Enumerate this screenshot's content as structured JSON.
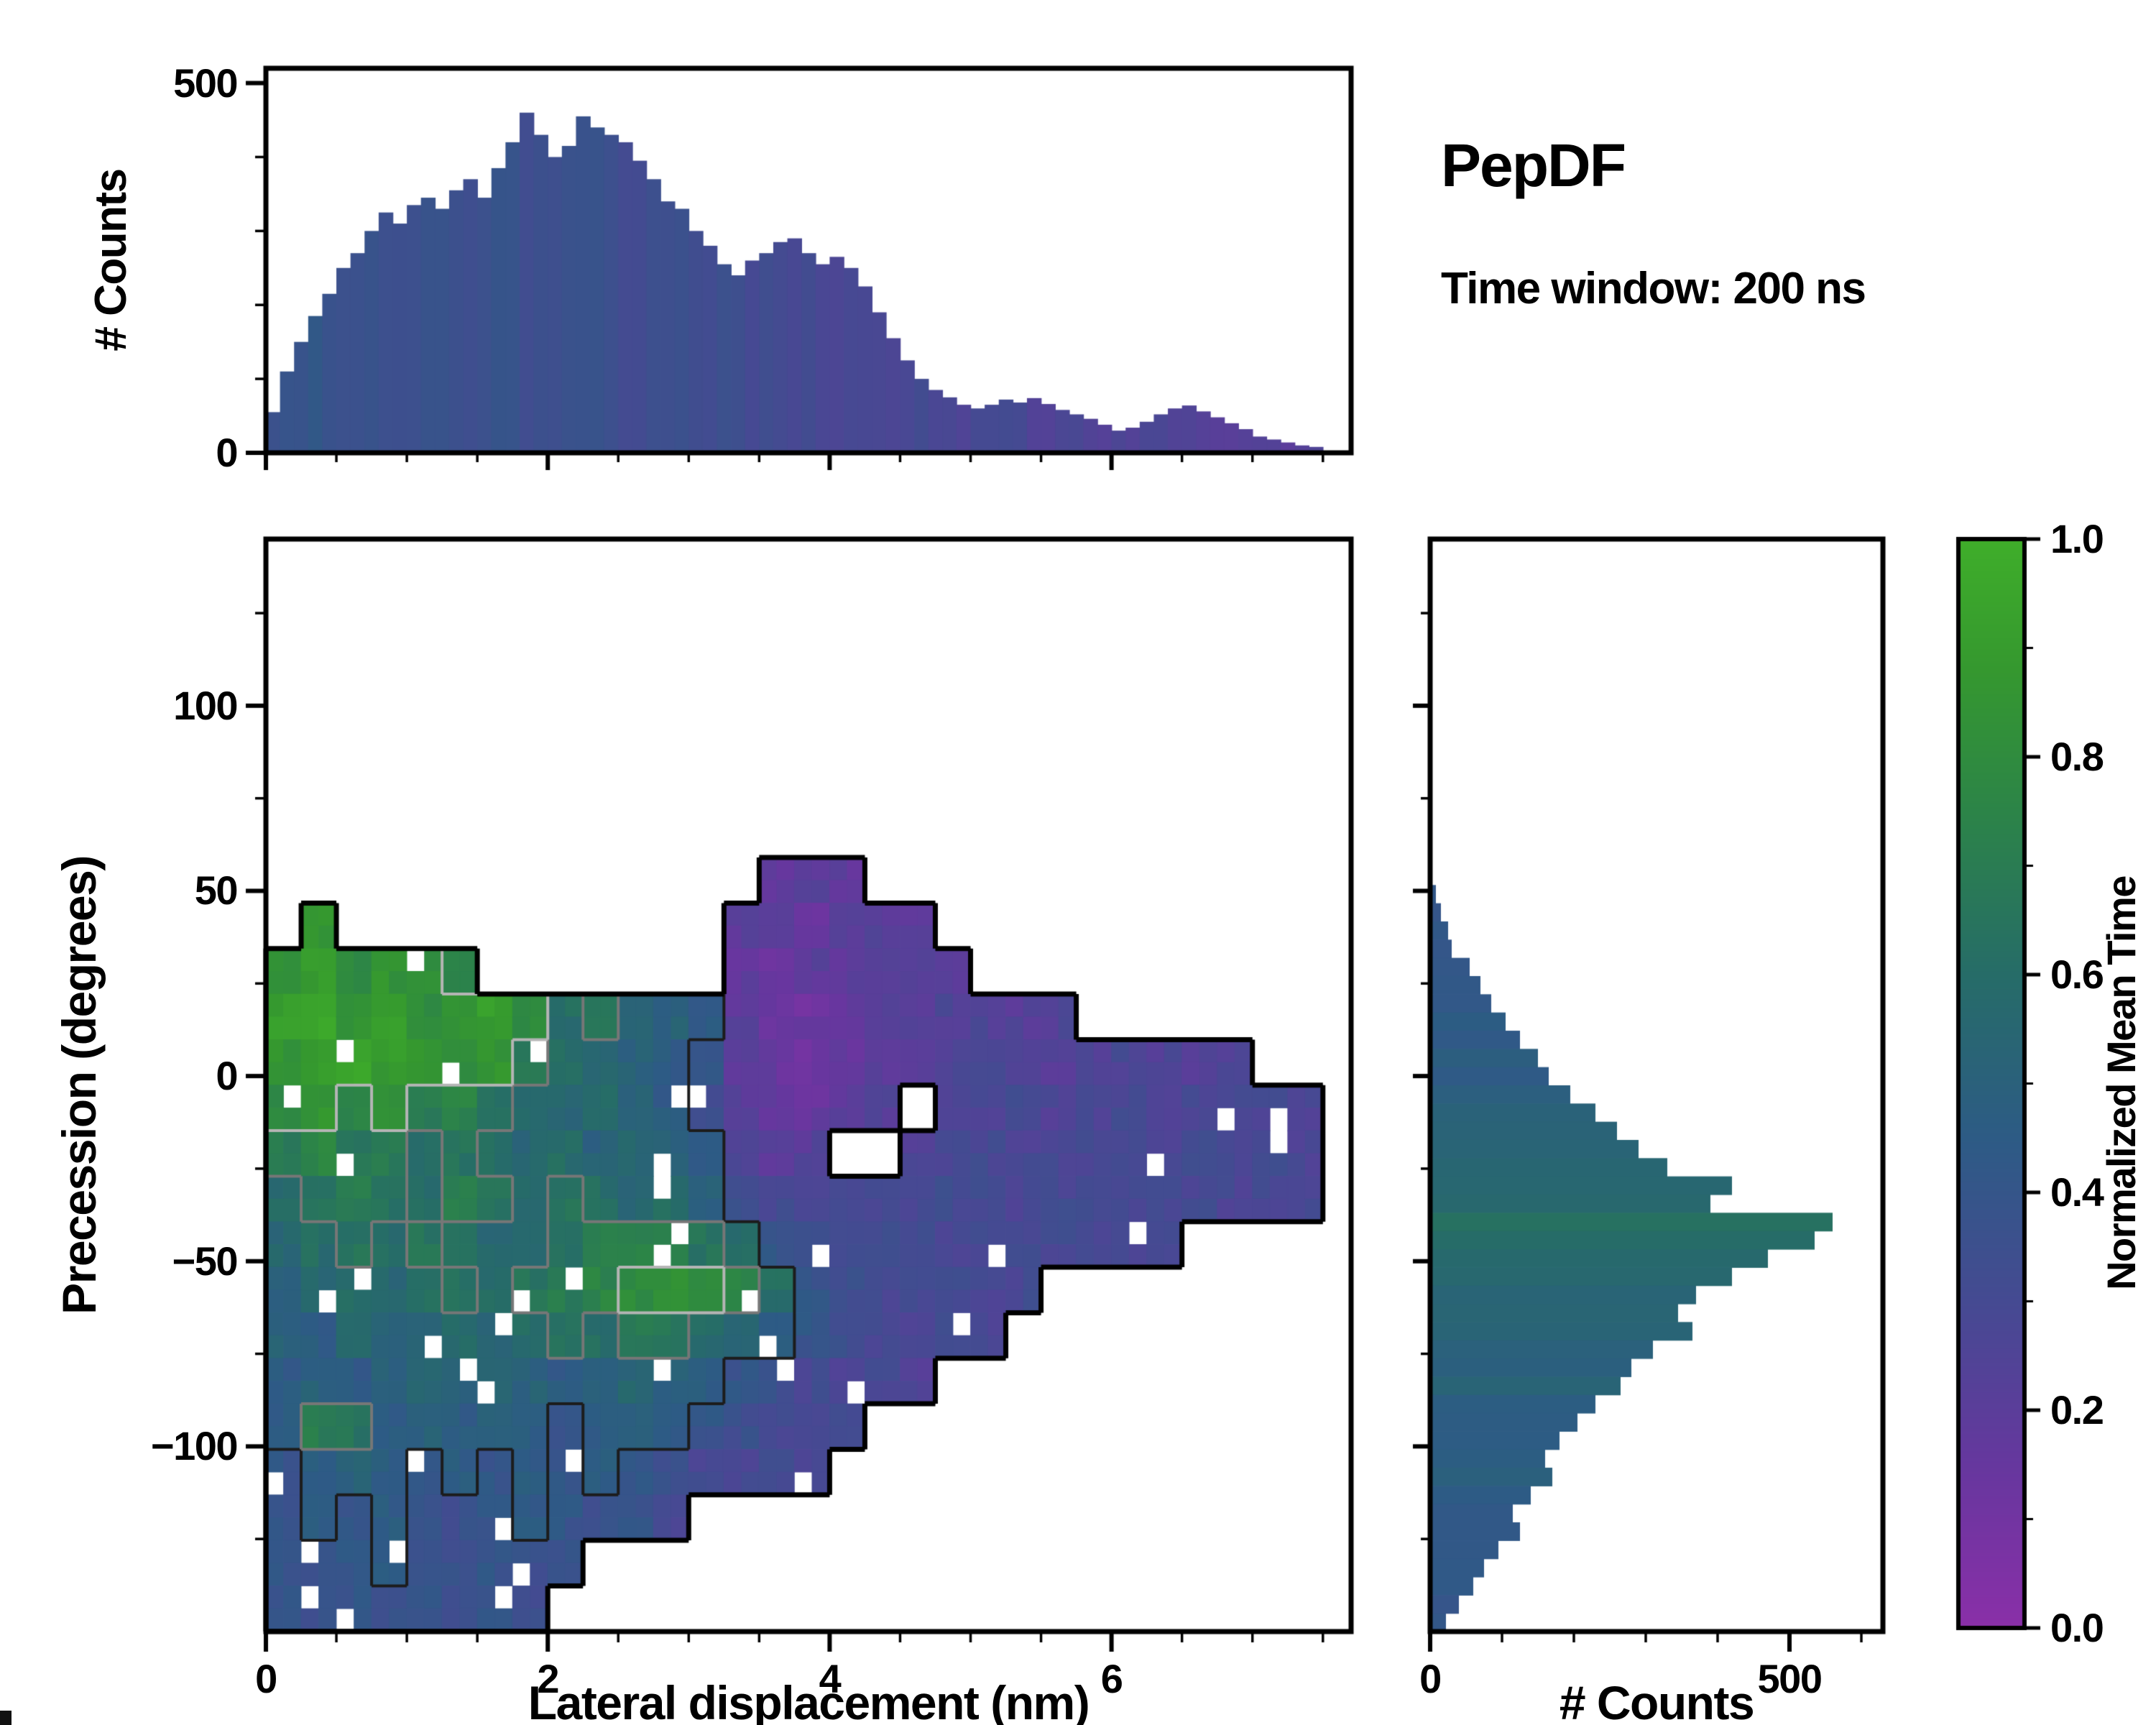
{
  "chart_data": {
    "type": "heatmap",
    "title": "PepDF",
    "annotation": "Time window: 200 ns",
    "xlabel": "Lateral displacement (nm)",
    "ylabel": "Precession (degrees)",
    "colorbar_label": "Normalized Mean Time",
    "x_range": [
      0,
      7.7
    ],
    "y_range": [
      -150,
      145
    ],
    "grid": "off",
    "colormap": [
      [
        0.0,
        "#8a2fa8"
      ],
      [
        0.15,
        "#66379e"
      ],
      [
        0.3,
        "#454a92"
      ],
      [
        0.45,
        "#2d5b85"
      ],
      [
        0.6,
        "#266c68"
      ],
      [
        0.75,
        "#2c8448"
      ],
      [
        0.88,
        "#35982f"
      ],
      [
        1.0,
        "#3fae2a"
      ]
    ],
    "no_data_value": -1,
    "main_xticks": {
      "values": [
        0,
        2,
        4,
        6
      ],
      "labels": [
        "0",
        "2",
        "4",
        "6"
      ]
    },
    "main_yticks": {
      "values": [
        100,
        50,
        0,
        -50,
        -100
      ],
      "labels": [
        "100",
        "50",
        "0",
        "−50",
        "−100"
      ]
    },
    "colorbar_ticks": {
      "values": [
        0,
        0.2,
        0.4,
        0.6,
        0.8,
        1.0
      ],
      "labels": [
        "0.0",
        "0.2",
        "0.4",
        "0.6",
        "0.8",
        "1.0"
      ]
    },
    "contour_levels": [
      {
        "value": 0.45,
        "color": "#1c1c1c"
      },
      {
        "value": 0.62,
        "color": "#777777"
      },
      {
        "value": 0.78,
        "color": "#b5b5b5"
      }
    ],
    "heatmap": {
      "x0": 0,
      "dx": 0.25,
      "y0": 59.0,
      "dy": -12.2917,
      "values": [
        [
          -1,
          -1,
          -1,
          -1,
          -1,
          -1,
          -1,
          -1,
          -1,
          -1,
          -1,
          -1,
          -1,
          -1,
          0.18,
          0.2,
          0.18,
          -1,
          -1,
          -1,
          -1,
          -1,
          -1,
          -1,
          -1,
          -1,
          -1,
          -1,
          -1,
          -1
        ],
        [
          -1,
          0.85,
          -1,
          -1,
          -1,
          -1,
          -1,
          -1,
          -1,
          -1,
          -1,
          -1,
          -1,
          0.2,
          0.18,
          0.15,
          0.2,
          0.22,
          0.2,
          -1,
          -1,
          -1,
          -1,
          -1,
          -1,
          -1,
          -1,
          -1,
          -1,
          -1
        ],
        [
          0.85,
          0.9,
          0.8,
          0.85,
          0.8,
          0.75,
          -1,
          -1,
          -1,
          -1,
          -1,
          -1,
          -1,
          0.18,
          0.15,
          0.2,
          0.18,
          0.2,
          0.22,
          0.2,
          -1,
          -1,
          -1,
          -1,
          -1,
          -1,
          -1,
          -1,
          -1,
          -1
        ],
        [
          0.9,
          0.95,
          0.85,
          0.9,
          0.8,
          0.85,
          0.9,
          0.8,
          0.6,
          0.65,
          0.55,
          0.5,
          0.45,
          0.2,
          0.15,
          0.12,
          0.18,
          0.2,
          0.22,
          0.25,
          0.25,
          0.22,
          0.25,
          -1,
          -1,
          -1,
          -1,
          -1,
          -1,
          -1
        ],
        [
          0.85,
          0.9,
          0.95,
          0.9,
          0.85,
          0.8,
          0.85,
          0.7,
          0.6,
          0.55,
          0.5,
          0.45,
          0.4,
          0.18,
          0.15,
          0.12,
          0.15,
          0.2,
          0.22,
          0.25,
          0.28,
          0.25,
          0.22,
          0.25,
          0.28,
          0.25,
          0.22,
          0.25,
          -1,
          -1
        ],
        [
          0.8,
          0.85,
          0.75,
          0.8,
          0.7,
          0.75,
          0.65,
          0.6,
          0.55,
          0.6,
          0.5,
          0.45,
          0.35,
          0.2,
          0.15,
          0.15,
          0.2,
          0.22,
          -1,
          0.25,
          0.28,
          0.3,
          0.25,
          0.28,
          0.3,
          0.25,
          0.28,
          0.3,
          0.28,
          0.25
        ],
        [
          0.7,
          0.75,
          0.65,
          0.7,
          0.6,
          0.65,
          0.6,
          0.55,
          0.6,
          0.5,
          0.55,
          0.5,
          0.45,
          0.25,
          0.2,
          0.22,
          -1,
          -1,
          0.25,
          0.28,
          0.3,
          0.28,
          0.3,
          0.28,
          0.3,
          0.28,
          0.3,
          0.28,
          0.3,
          0.28
        ],
        [
          0.6,
          0.65,
          0.7,
          0.65,
          0.6,
          0.7,
          0.65,
          0.6,
          0.65,
          0.6,
          0.55,
          0.6,
          0.5,
          0.35,
          0.3,
          0.28,
          0.3,
          0.28,
          0.3,
          0.32,
          0.3,
          0.28,
          0.3,
          0.32,
          0.3,
          0.28,
          0.3,
          0.28,
          0.3,
          0.3
        ],
        [
          0.55,
          0.6,
          0.65,
          0.6,
          0.65,
          0.6,
          0.55,
          0.6,
          0.65,
          0.7,
          0.75,
          0.7,
          0.65,
          0.6,
          0.4,
          0.35,
          0.3,
          0.32,
          0.3,
          0.28,
          0.3,
          0.32,
          0.3,
          0.28,
          0.3,
          0.28,
          -1,
          -1,
          -1,
          -1
        ],
        [
          0.5,
          0.55,
          0.6,
          0.55,
          0.6,
          0.65,
          0.6,
          0.65,
          0.7,
          0.75,
          0.8,
          0.85,
          0.8,
          0.75,
          0.6,
          0.4,
          0.35,
          0.3,
          0.32,
          0.3,
          0.28,
          0.3,
          -1,
          -1,
          -1,
          -1,
          -1,
          -1,
          -1,
          -1
        ],
        [
          0.5,
          0.45,
          0.55,
          0.5,
          0.55,
          0.6,
          0.55,
          0.6,
          0.65,
          0.6,
          0.7,
          0.65,
          0.6,
          0.55,
          0.45,
          0.4,
          0.35,
          0.3,
          0.28,
          0.3,
          0.28,
          -1,
          -1,
          -1,
          -1,
          -1,
          -1,
          -1,
          -1,
          -1
        ],
        [
          0.45,
          0.5,
          0.45,
          0.5,
          0.55,
          0.5,
          0.55,
          0.5,
          0.45,
          0.5,
          0.55,
          0.5,
          0.45,
          0.4,
          0.35,
          0.3,
          0.28,
          0.3,
          0.25,
          -1,
          -1,
          -1,
          -1,
          -1,
          -1,
          -1,
          -1,
          -1,
          -1,
          -1
        ],
        [
          0.45,
          0.7,
          0.65,
          0.45,
          0.5,
          0.45,
          0.5,
          0.45,
          0.4,
          0.45,
          0.5,
          0.45,
          0.4,
          0.35,
          0.3,
          0.28,
          0.3,
          -1,
          -1,
          -1,
          -1,
          -1,
          -1,
          -1,
          -1,
          -1,
          -1,
          -1,
          -1,
          -1
        ],
        [
          0.4,
          0.45,
          0.5,
          0.45,
          0.4,
          0.45,
          0.4,
          0.45,
          0.4,
          0.45,
          0.4,
          0.35,
          0.3,
          0.28,
          0.3,
          0.28,
          -1,
          -1,
          -1,
          -1,
          -1,
          -1,
          -1,
          -1,
          -1,
          -1,
          -1,
          -1,
          -1,
          -1
        ],
        [
          0.4,
          0.45,
          0.4,
          0.45,
          0.4,
          0.35,
          0.4,
          0.45,
          0.4,
          0.35,
          0.4,
          0.3,
          -1,
          -1,
          -1,
          -1,
          -1,
          -1,
          -1,
          -1,
          -1,
          -1,
          -1,
          -1,
          -1,
          -1,
          -1,
          -1,
          -1,
          -1
        ],
        [
          0.4,
          0.35,
          0.4,
          0.45,
          0.4,
          0.35,
          0.4,
          0.35,
          0.4,
          -1,
          -1,
          -1,
          -1,
          -1,
          -1,
          -1,
          -1,
          -1,
          -1,
          -1,
          -1,
          -1,
          -1,
          -1,
          -1,
          -1,
          -1,
          -1,
          -1,
          -1
        ],
        [
          0.4,
          0.35,
          0.4,
          0.35,
          0.4,
          0.35,
          0.4,
          0.35,
          -1,
          -1,
          -1,
          -1,
          -1,
          -1,
          -1,
          -1,
          -1,
          -1,
          -1,
          -1,
          -1,
          -1,
          -1,
          -1,
          -1,
          -1,
          -1,
          -1,
          -1,
          -1
        ]
      ]
    },
    "top_histogram": {
      "ylabel": "# Counts",
      "bin_start": 0,
      "bin_width": 0.1,
      "y_range": [
        0,
        520
      ],
      "yticks": {
        "values": [
          0,
          500
        ],
        "labels": [
          "0",
          "500"
        ]
      },
      "counts": [
        55,
        110,
        150,
        185,
        215,
        250,
        270,
        300,
        325,
        310,
        335,
        345,
        330,
        355,
        370,
        345,
        385,
        420,
        460,
        430,
        400,
        415,
        455,
        440,
        430,
        420,
        395,
        370,
        340,
        330,
        300,
        280,
        255,
        240,
        260,
        270,
        285,
        290,
        270,
        255,
        265,
        250,
        225,
        190,
        155,
        125,
        100,
        85,
        75,
        65,
        60,
        65,
        72,
        68,
        74,
        66,
        58,
        52,
        46,
        38,
        30,
        34,
        42,
        52,
        60,
        64,
        56,
        48,
        40,
        32,
        22,
        18,
        14,
        10,
        8
      ]
    },
    "right_histogram": {
      "xlabel": "# Counts",
      "bin_start": 145,
      "bin_height": -4.9167,
      "x_range": [
        0,
        630
      ],
      "xticks": {
        "values": [
          0,
          500
        ],
        "labels": [
          "0",
          "500"
        ]
      },
      "counts": [
        0,
        0,
        0,
        0,
        0,
        0,
        0,
        0,
        0,
        0,
        0,
        0,
        0,
        0,
        0,
        0,
        0,
        0,
        0,
        8,
        15,
        25,
        30,
        55,
        70,
        85,
        105,
        125,
        150,
        165,
        195,
        230,
        260,
        290,
        330,
        420,
        390,
        560,
        535,
        470,
        420,
        370,
        345,
        365,
        310,
        280,
        265,
        230,
        205,
        180,
        160,
        170,
        140,
        115,
        125,
        95,
        75,
        60,
        40,
        22
      ]
    }
  }
}
